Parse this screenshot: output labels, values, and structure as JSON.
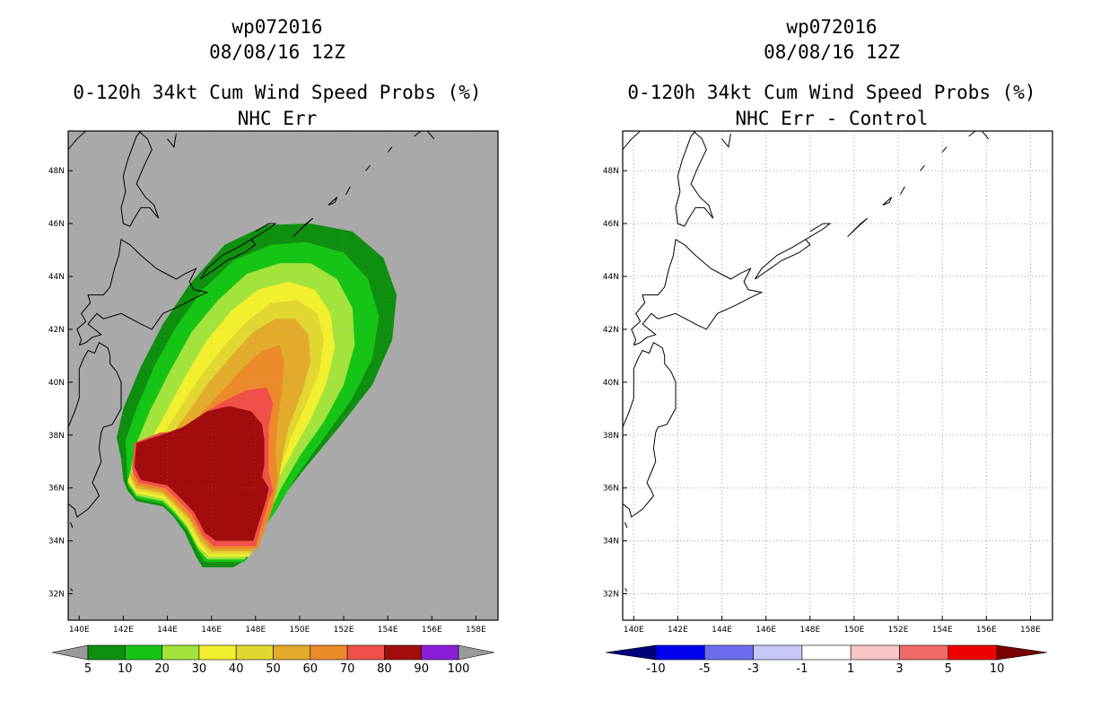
{
  "left": {
    "storm_id": "wp072016",
    "datetime": "08/08/16 12Z",
    "title": "0-120h 34kt Cum Wind Speed Probs (%)",
    "subtitle": "NHC Err",
    "colorbar": {
      "colors": [
        "#9a9a9a",
        "#0f8f0f",
        "#16c416",
        "#a2e33c",
        "#f2ef2e",
        "#e2d631",
        "#e3ab2c",
        "#ec8a2b",
        "#f1504a",
        "#a20c0c",
        "#8a1ed8",
        "#9a9a9a"
      ],
      "labels": [
        "5",
        "10",
        "20",
        "30",
        "40",
        "50",
        "60",
        "70",
        "80",
        "90",
        "100"
      ]
    }
  },
  "right": {
    "storm_id": "wp072016",
    "datetime": "08/08/16 12Z",
    "title": "0-120h 34kt Cum Wind Speed Probs (%)",
    "subtitle": "NHC Err - Control",
    "colorbar": {
      "colors": [
        "#00007a",
        "#0000ee",
        "#6d6df0",
        "#c8c8f6",
        "#ffffff",
        "#f8c6c6",
        "#f06a6a",
        "#ee0000",
        "#7a0000"
      ],
      "labels": [
        "-10",
        "-5",
        "-3",
        "-1",
        "1",
        "3",
        "5",
        "10"
      ]
    }
  },
  "axes": {
    "x_labels": [
      "140E",
      "142E",
      "144E",
      "146E",
      "148E",
      "150E",
      "152E",
      "154E",
      "156E",
      "158E"
    ],
    "y_labels": [
      "48N",
      "46N",
      "44N",
      "42N",
      "40N",
      "38N",
      "36N",
      "34N",
      "32N"
    ],
    "x_range": [
      139.5,
      159.0
    ],
    "y_range": [
      31.0,
      49.5
    ]
  },
  "probability_contours": [
    {
      "level": "5",
      "color": "#0f8f0f"
    },
    {
      "level": "10",
      "color": "#16c416"
    },
    {
      "level": "20",
      "color": "#a2e33c"
    },
    {
      "level": "30",
      "color": "#f2ef2e"
    },
    {
      "level": "40",
      "color": "#e2d631"
    },
    {
      "level": "50",
      "color": "#e3ab2c"
    },
    {
      "level": "60",
      "color": "#ec8a2b"
    },
    {
      "level": "70",
      "color": "#f1504a"
    },
    {
      "level": "80",
      "color": "#a20c0c"
    },
    {
      "level": "90",
      "color": "#8a1ed8"
    }
  ],
  "colors": {
    "background_gray": "#a9a9a9",
    "coast": "#000000",
    "grid": "#9a9a9a"
  }
}
